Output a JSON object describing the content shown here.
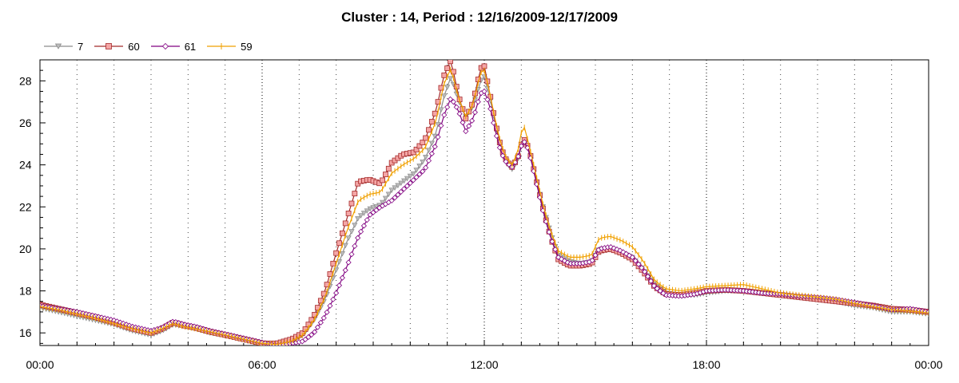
{
  "chart_data": {
    "type": "line",
    "title": "Cluster : 14, Period : 12/16/2009-12/17/2009",
    "xlabel": "",
    "ylabel": "",
    "xlim": [
      0,
      24
    ],
    "ylim": [
      15.4,
      29.0
    ],
    "grid": "vertical dotted",
    "legend_position": "top-left",
    "x_ticks": [
      {
        "x": 0,
        "label": "00:00"
      },
      {
        "x": 6,
        "label": "06:00"
      },
      {
        "x": 12,
        "label": "12:00"
      },
      {
        "x": 18,
        "label": "18:00"
      },
      {
        "x": 24,
        "label": "00:00"
      }
    ],
    "y_ticks": [
      16,
      18,
      20,
      22,
      24,
      26,
      28
    ],
    "series": [
      {
        "name": "7",
        "color": "#8c8c8c",
        "marker": "triangle-down",
        "points": [
          [
            0,
            17.2
          ],
          [
            0.5,
            17.0
          ],
          [
            1,
            16.8
          ],
          [
            1.5,
            16.6
          ],
          [
            2,
            16.4
          ],
          [
            2.5,
            16.1
          ],
          [
            3,
            15.9
          ],
          [
            3.3,
            16.1
          ],
          [
            3.6,
            16.4
          ],
          [
            3.9,
            16.3
          ],
          [
            4.2,
            16.2
          ],
          [
            4.6,
            16.0
          ],
          [
            5,
            15.9
          ],
          [
            5.5,
            15.7
          ],
          [
            6,
            15.5
          ],
          [
            6.4,
            15.4
          ],
          [
            6.8,
            15.6
          ],
          [
            7.1,
            15.9
          ],
          [
            7.4,
            16.6
          ],
          [
            7.7,
            17.6
          ],
          [
            8,
            19.0
          ],
          [
            8.3,
            20.4
          ],
          [
            8.6,
            21.5
          ],
          [
            8.9,
            21.9
          ],
          [
            9.2,
            22.1
          ],
          [
            9.5,
            22.8
          ],
          [
            9.8,
            23.2
          ],
          [
            10.1,
            23.6
          ],
          [
            10.4,
            24.3
          ],
          [
            10.7,
            25.5
          ],
          [
            10.9,
            27.2
          ],
          [
            11.1,
            28.2
          ],
          [
            11.3,
            27.1
          ],
          [
            11.5,
            26.3
          ],
          [
            11.7,
            26.8
          ],
          [
            11.9,
            28.0
          ],
          [
            12.0,
            28.2
          ],
          [
            12.15,
            27.2
          ],
          [
            12.3,
            25.9
          ],
          [
            12.45,
            24.8
          ],
          [
            12.6,
            24.1
          ],
          [
            12.75,
            23.8
          ],
          [
            12.9,
            24.2
          ],
          [
            13.05,
            25.2
          ],
          [
            13.2,
            24.7
          ],
          [
            13.4,
            23.3
          ],
          [
            13.6,
            21.9
          ],
          [
            13.8,
            20.7
          ],
          [
            14.0,
            19.7
          ],
          [
            14.3,
            19.4
          ],
          [
            14.6,
            19.3
          ],
          [
            14.9,
            19.4
          ],
          [
            15.1,
            20.0
          ],
          [
            15.4,
            20.0
          ],
          [
            15.7,
            19.8
          ],
          [
            16.0,
            19.6
          ],
          [
            16.3,
            19.0
          ],
          [
            16.6,
            18.3
          ],
          [
            16.9,
            17.9
          ],
          [
            17.3,
            17.8
          ],
          [
            17.7,
            17.8
          ],
          [
            18,
            17.9
          ],
          [
            18.5,
            18.0
          ],
          [
            19,
            18.0
          ],
          [
            19.5,
            17.9
          ],
          [
            20,
            17.8
          ],
          [
            20.5,
            17.7
          ],
          [
            21,
            17.6
          ],
          [
            21.5,
            17.5
          ],
          [
            22,
            17.3
          ],
          [
            22.5,
            17.2
          ],
          [
            23,
            17.0
          ],
          [
            23.5,
            17.0
          ],
          [
            24,
            16.9
          ]
        ]
      },
      {
        "name": "60",
        "color": "#a52a2a",
        "marker": "square",
        "marker_fill": "#f4a6a6",
        "points": [
          [
            0,
            17.35
          ],
          [
            0.5,
            17.15
          ],
          [
            1,
            16.95
          ],
          [
            1.5,
            16.75
          ],
          [
            2,
            16.5
          ],
          [
            2.5,
            16.2
          ],
          [
            3,
            16.0
          ],
          [
            3.3,
            16.2
          ],
          [
            3.6,
            16.5
          ],
          [
            3.9,
            16.35
          ],
          [
            4.2,
            16.25
          ],
          [
            4.6,
            16.05
          ],
          [
            5,
            15.9
          ],
          [
            5.5,
            15.7
          ],
          [
            6,
            15.5
          ],
          [
            6.4,
            15.5
          ],
          [
            6.8,
            15.7
          ],
          [
            7.1,
            16.0
          ],
          [
            7.4,
            16.8
          ],
          [
            7.7,
            18.0
          ],
          [
            8,
            19.8
          ],
          [
            8.3,
            21.5
          ],
          [
            8.6,
            23.2
          ],
          [
            8.9,
            23.3
          ],
          [
            9.2,
            23.1
          ],
          [
            9.5,
            24.1
          ],
          [
            9.8,
            24.5
          ],
          [
            10.1,
            24.6
          ],
          [
            10.4,
            25.2
          ],
          [
            10.7,
            26.6
          ],
          [
            10.9,
            28.2
          ],
          [
            11.1,
            29.0
          ],
          [
            11.3,
            27.3
          ],
          [
            11.5,
            26.2
          ],
          [
            11.7,
            27.0
          ],
          [
            11.9,
            28.6
          ],
          [
            12.0,
            28.7
          ],
          [
            12.15,
            27.4
          ],
          [
            12.3,
            26.0
          ],
          [
            12.45,
            24.8
          ],
          [
            12.6,
            24.2
          ],
          [
            12.75,
            23.9
          ],
          [
            12.9,
            24.3
          ],
          [
            13.05,
            25.3
          ],
          [
            13.2,
            24.8
          ],
          [
            13.4,
            23.3
          ],
          [
            13.6,
            21.8
          ],
          [
            13.8,
            20.5
          ],
          [
            14.0,
            19.5
          ],
          [
            14.3,
            19.2
          ],
          [
            14.6,
            19.2
          ],
          [
            14.9,
            19.3
          ],
          [
            15.1,
            19.9
          ],
          [
            15.4,
            20.0
          ],
          [
            15.7,
            19.8
          ],
          [
            16.0,
            19.5
          ],
          [
            16.3,
            18.9
          ],
          [
            16.6,
            18.2
          ],
          [
            16.9,
            17.85
          ],
          [
            17.3,
            17.8
          ],
          [
            17.7,
            17.9
          ],
          [
            18,
            18.0
          ],
          [
            18.5,
            18.05
          ],
          [
            19,
            18.0
          ],
          [
            19.5,
            17.9
          ],
          [
            20,
            17.8
          ],
          [
            20.5,
            17.7
          ],
          [
            21,
            17.6
          ],
          [
            21.5,
            17.5
          ],
          [
            22,
            17.4
          ],
          [
            22.5,
            17.3
          ],
          [
            23,
            17.15
          ],
          [
            23.5,
            17.1
          ],
          [
            24,
            17.0
          ]
        ]
      },
      {
        "name": "61",
        "color": "#800080",
        "marker": "diamond",
        "points": [
          [
            0,
            17.3
          ],
          [
            0.5,
            17.15
          ],
          [
            1,
            17.0
          ],
          [
            1.5,
            16.8
          ],
          [
            2,
            16.6
          ],
          [
            2.5,
            16.3
          ],
          [
            3,
            16.1
          ],
          [
            3.3,
            16.25
          ],
          [
            3.6,
            16.55
          ],
          [
            3.9,
            16.4
          ],
          [
            4.2,
            16.3
          ],
          [
            4.6,
            16.1
          ],
          [
            5,
            15.95
          ],
          [
            5.5,
            15.75
          ],
          [
            6,
            15.55
          ],
          [
            6.4,
            15.4
          ],
          [
            6.8,
            15.5
          ],
          [
            7.1,
            15.6
          ],
          [
            7.4,
            16.0
          ],
          [
            7.7,
            16.8
          ],
          [
            8,
            17.9
          ],
          [
            8.3,
            19.2
          ],
          [
            8.6,
            20.6
          ],
          [
            8.9,
            21.6
          ],
          [
            9.2,
            22.0
          ],
          [
            9.5,
            22.3
          ],
          [
            9.8,
            22.8
          ],
          [
            10.1,
            23.3
          ],
          [
            10.4,
            23.8
          ],
          [
            10.7,
            25.0
          ],
          [
            10.9,
            26.3
          ],
          [
            11.1,
            27.2
          ],
          [
            11.3,
            26.6
          ],
          [
            11.5,
            25.6
          ],
          [
            11.7,
            26.2
          ],
          [
            11.9,
            27.4
          ],
          [
            12.0,
            27.5
          ],
          [
            12.15,
            26.8
          ],
          [
            12.3,
            25.6
          ],
          [
            12.45,
            24.6
          ],
          [
            12.6,
            24.1
          ],
          [
            12.75,
            23.9
          ],
          [
            12.9,
            24.3
          ],
          [
            13.05,
            25.2
          ],
          [
            13.2,
            24.7
          ],
          [
            13.4,
            23.2
          ],
          [
            13.6,
            21.7
          ],
          [
            13.8,
            20.5
          ],
          [
            14.0,
            19.6
          ],
          [
            14.3,
            19.3
          ],
          [
            14.6,
            19.3
          ],
          [
            14.9,
            19.4
          ],
          [
            15.1,
            20.0
          ],
          [
            15.4,
            20.1
          ],
          [
            15.7,
            19.9
          ],
          [
            16.0,
            19.6
          ],
          [
            16.3,
            19.0
          ],
          [
            16.6,
            18.2
          ],
          [
            16.9,
            17.8
          ],
          [
            17.3,
            17.75
          ],
          [
            17.7,
            17.85
          ],
          [
            18,
            18.0
          ],
          [
            18.5,
            18.05
          ],
          [
            19,
            18.0
          ],
          [
            19.5,
            17.9
          ],
          [
            20,
            17.85
          ],
          [
            20.5,
            17.75
          ],
          [
            21,
            17.7
          ],
          [
            21.5,
            17.6
          ],
          [
            22,
            17.45
          ],
          [
            22.5,
            17.3
          ],
          [
            23,
            17.1
          ],
          [
            23.5,
            17.15
          ],
          [
            24,
            17.0
          ]
        ]
      },
      {
        "name": "59",
        "color": "#f0a000",
        "marker": "plus",
        "points": [
          [
            0,
            17.25
          ],
          [
            0.5,
            17.1
          ],
          [
            1,
            16.9
          ],
          [
            1.5,
            16.7
          ],
          [
            2,
            16.45
          ],
          [
            2.5,
            16.2
          ],
          [
            3,
            16.0
          ],
          [
            3.3,
            16.2
          ],
          [
            3.6,
            16.45
          ],
          [
            3.9,
            16.3
          ],
          [
            4.2,
            16.2
          ],
          [
            4.6,
            16.05
          ],
          [
            5,
            15.9
          ],
          [
            5.5,
            15.7
          ],
          [
            6,
            15.5
          ],
          [
            6.4,
            15.45
          ],
          [
            6.8,
            15.6
          ],
          [
            7.1,
            15.9
          ],
          [
            7.4,
            16.6
          ],
          [
            7.7,
            17.7
          ],
          [
            8,
            19.3
          ],
          [
            8.3,
            20.9
          ],
          [
            8.6,
            22.3
          ],
          [
            8.9,
            22.6
          ],
          [
            9.2,
            22.7
          ],
          [
            9.5,
            23.6
          ],
          [
            9.8,
            24.0
          ],
          [
            10.1,
            24.3
          ],
          [
            10.4,
            24.8
          ],
          [
            10.7,
            26.1
          ],
          [
            10.9,
            27.8
          ],
          [
            11.1,
            28.6
          ],
          [
            11.3,
            27.2
          ],
          [
            11.5,
            26.3
          ],
          [
            11.7,
            26.9
          ],
          [
            11.9,
            28.4
          ],
          [
            12.0,
            28.5
          ],
          [
            12.15,
            27.4
          ],
          [
            12.3,
            26.1
          ],
          [
            12.45,
            25.0
          ],
          [
            12.6,
            24.3
          ],
          [
            12.75,
            24.0
          ],
          [
            12.9,
            24.6
          ],
          [
            13.05,
            26.0
          ],
          [
            13.2,
            25.0
          ],
          [
            13.4,
            23.5
          ],
          [
            13.6,
            22.0
          ],
          [
            13.8,
            20.8
          ],
          [
            14.0,
            19.9
          ],
          [
            14.3,
            19.6
          ],
          [
            14.6,
            19.6
          ],
          [
            14.9,
            19.7
          ],
          [
            15.1,
            20.5
          ],
          [
            15.4,
            20.6
          ],
          [
            15.7,
            20.4
          ],
          [
            16.0,
            20.1
          ],
          [
            16.3,
            19.4
          ],
          [
            16.6,
            18.5
          ],
          [
            16.9,
            18.1
          ],
          [
            17.3,
            18.0
          ],
          [
            17.7,
            18.1
          ],
          [
            18,
            18.2
          ],
          [
            18.5,
            18.25
          ],
          [
            19,
            18.3
          ],
          [
            19.5,
            18.1
          ],
          [
            20,
            17.9
          ],
          [
            20.5,
            17.8
          ],
          [
            21,
            17.7
          ],
          [
            21.5,
            17.6
          ],
          [
            22,
            17.4
          ],
          [
            22.5,
            17.25
          ],
          [
            23,
            17.1
          ],
          [
            23.5,
            17.05
          ],
          [
            24,
            16.95
          ]
        ]
      }
    ]
  }
}
